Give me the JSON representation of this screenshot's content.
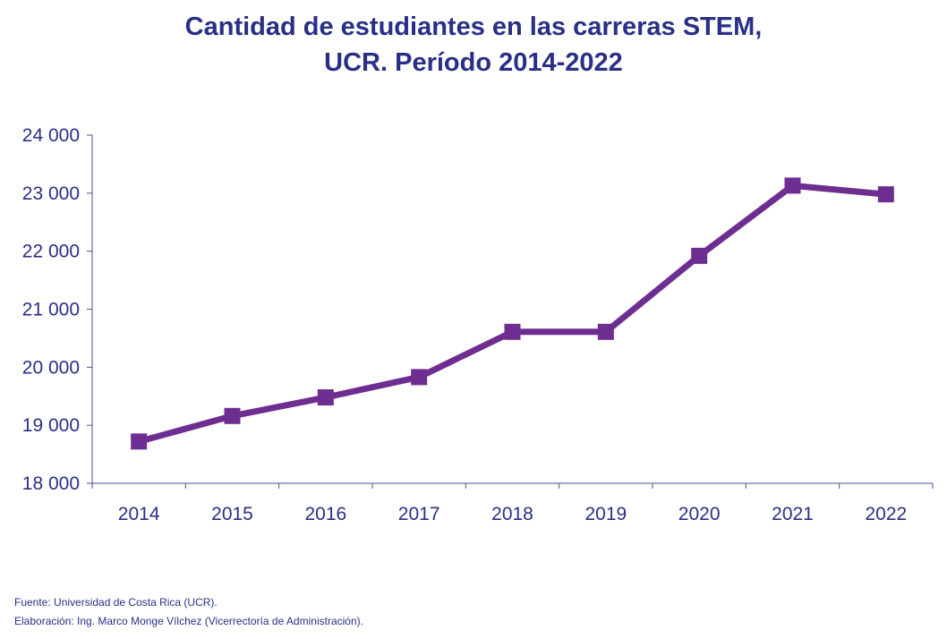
{
  "chart_data": {
    "type": "line",
    "title_line1": "Cantidad de estudiantes en las carreras STEM,",
    "title_line2": "UCR. Período 2014-2022",
    "xlabel": "",
    "ylabel": "",
    "x": [
      "2014",
      "2015",
      "2016",
      "2017",
      "2018",
      "2019",
      "2020",
      "2021",
      "2022"
    ],
    "series": [
      {
        "values": [
          18720,
          19160,
          19480,
          19830,
          20610,
          20610,
          21920,
          23130,
          22980
        ]
      }
    ],
    "ylim": [
      18000,
      24000
    ],
    "yticks": [
      18000,
      19000,
      20000,
      21000,
      22000,
      23000,
      24000
    ],
    "ytick_labels": [
      "18 000",
      "19 000",
      "20 000",
      "21 000",
      "22 000",
      "23 000",
      "24 000"
    ],
    "grid": false,
    "legend": "none",
    "line_color": "#6e2e91",
    "text_color": "#2a2f86",
    "marker": "square"
  },
  "footer": {
    "source": "Fuente: Universidad de Costa Rica (UCR).",
    "credit": "Elaboración: Ing. Marco Monge Vílchez (Vicerrectoría de Administración)."
  }
}
